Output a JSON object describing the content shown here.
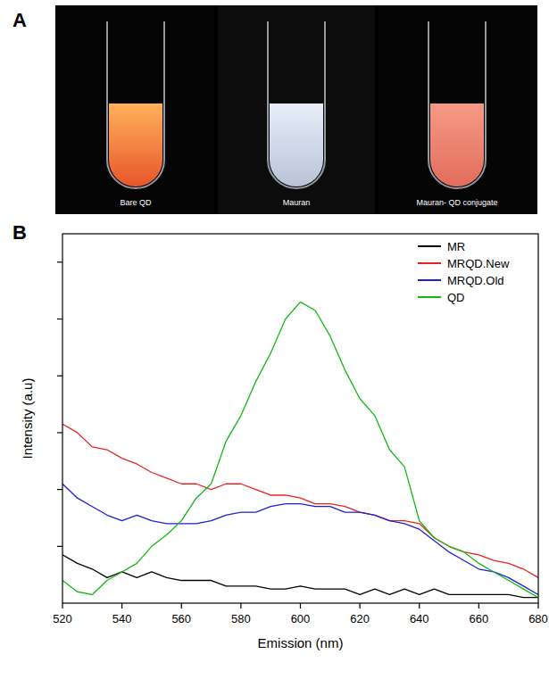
{
  "panels": {
    "a": {
      "letter": "A",
      "vials": [
        "Bare QD",
        "Mauran",
        "Mauran- QD conjugate"
      ]
    },
    "b": {
      "letter": "B"
    }
  },
  "chart_data": {
    "type": "line",
    "x_label": "Emission (nm)",
    "y_label": "Intensity (a.u)",
    "x": [
      520,
      525,
      530,
      535,
      540,
      545,
      550,
      555,
      560,
      565,
      570,
      575,
      580,
      585,
      590,
      595,
      600,
      605,
      610,
      615,
      620,
      625,
      630,
      635,
      640,
      645,
      650,
      655,
      660,
      665,
      670,
      675,
      680
    ],
    "series": [
      {
        "name": "MR",
        "color": "#000000",
        "values": [
          0.85,
          0.7,
          0.6,
          0.45,
          0.55,
          0.45,
          0.55,
          0.45,
          0.4,
          0.4,
          0.4,
          0.3,
          0.3,
          0.3,
          0.25,
          0.25,
          0.3,
          0.25,
          0.25,
          0.25,
          0.15,
          0.25,
          0.15,
          0.25,
          0.15,
          0.25,
          0.15,
          0.15,
          0.15,
          0.15,
          0.15,
          0.1,
          0.1
        ]
      },
      {
        "name": "MRQD.New",
        "color": "#e8231f",
        "values": [
          3.15,
          3.0,
          2.75,
          2.7,
          2.55,
          2.45,
          2.3,
          2.2,
          2.1,
          2.1,
          2.0,
          2.1,
          2.1,
          2.0,
          1.9,
          1.9,
          1.85,
          1.75,
          1.75,
          1.7,
          1.6,
          1.55,
          1.45,
          1.45,
          1.4,
          1.15,
          1.0,
          0.9,
          0.85,
          0.75,
          0.7,
          0.6,
          0.45
        ]
      },
      {
        "name": "MRQD.Old",
        "color": "#1f1fd6",
        "values": [
          2.1,
          1.85,
          1.7,
          1.55,
          1.45,
          1.55,
          1.45,
          1.4,
          1.4,
          1.4,
          1.45,
          1.55,
          1.6,
          1.6,
          1.7,
          1.75,
          1.75,
          1.7,
          1.7,
          1.6,
          1.6,
          1.55,
          1.45,
          1.4,
          1.3,
          1.1,
          0.9,
          0.75,
          0.6,
          0.55,
          0.45,
          0.3,
          0.15
        ]
      },
      {
        "name": "QD",
        "color": "#14b814",
        "values": [
          0.4,
          0.2,
          0.15,
          0.4,
          0.55,
          0.7,
          1.0,
          1.2,
          1.45,
          1.85,
          2.1,
          2.85,
          3.3,
          3.9,
          4.4,
          5.0,
          5.3,
          5.15,
          4.7,
          4.1,
          3.6,
          3.3,
          2.7,
          2.4,
          1.45,
          1.15,
          1.0,
          0.9,
          0.7,
          0.55,
          0.4,
          0.25,
          0.1
        ]
      }
    ],
    "xlim": [
      520,
      680
    ],
    "xticks": [
      520,
      540,
      560,
      580,
      600,
      620,
      640,
      660,
      680
    ],
    "ylim": [
      0,
      6.5
    ],
    "yticks": [
      1,
      2,
      3,
      4,
      5,
      6
    ],
    "tick_labels": "x",
    "legend": "top-right",
    "grid": false
  }
}
